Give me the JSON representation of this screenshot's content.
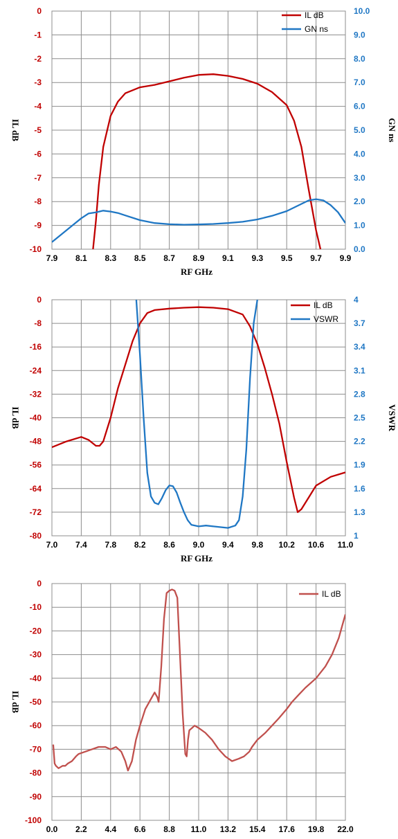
{
  "chart_data": [
    {
      "type": "line",
      "xlabel": "RF GHz",
      "ylabel": "IL dB",
      "y2label": "GN ns",
      "xlim": [
        7.9,
        9.9
      ],
      "ylim": [
        -10,
        0
      ],
      "y2lim": [
        0,
        10
      ],
      "xticks": [
        "7.9",
        "8.1",
        "8.3",
        "8.5",
        "8.7",
        "8.9",
        "9.1",
        "9.3",
        "9.5",
        "9.7",
        "9.9"
      ],
      "yticks": [
        "0",
        "-1",
        "-2",
        "-3",
        "-4",
        "-5",
        "-6",
        "-7",
        "-8",
        "-9",
        "-10"
      ],
      "y2ticks": [
        "10.0",
        "9.0",
        "8.0",
        "7.0",
        "6.0",
        "5.0",
        "4.0",
        "3.0",
        "2.0",
        "1.0",
        "0.0"
      ],
      "grid": true,
      "legend": "top-right",
      "series": [
        {
          "name": "IL dB",
          "axis": "left",
          "color": "#c00000",
          "x": [
            8.18,
            8.2,
            8.22,
            8.25,
            8.3,
            8.35,
            8.4,
            8.5,
            8.6,
            8.7,
            8.8,
            8.9,
            9.0,
            9.1,
            9.2,
            9.3,
            9.4,
            9.5,
            9.55,
            9.6,
            9.65,
            9.7,
            9.73
          ],
          "y": [
            -10,
            -8.8,
            -7.3,
            -5.7,
            -4.4,
            -3.8,
            -3.45,
            -3.2,
            -3.1,
            -2.95,
            -2.8,
            -2.68,
            -2.65,
            -2.72,
            -2.85,
            -3.05,
            -3.4,
            -3.95,
            -4.6,
            -5.7,
            -7.5,
            -9.2,
            -10
          ]
        },
        {
          "name": "GN ns",
          "axis": "right",
          "color": "#1f77c4",
          "x": [
            7.9,
            7.95,
            8.0,
            8.05,
            8.1,
            8.15,
            8.2,
            8.25,
            8.3,
            8.35,
            8.4,
            8.5,
            8.6,
            8.7,
            8.8,
            8.9,
            9.0,
            9.1,
            9.2,
            9.3,
            9.4,
            9.5,
            9.6,
            9.65,
            9.7,
            9.75,
            9.8,
            9.85,
            9.9
          ],
          "y": [
            0.3,
            0.55,
            0.8,
            1.05,
            1.3,
            1.5,
            1.55,
            1.62,
            1.58,
            1.52,
            1.42,
            1.22,
            1.1,
            1.05,
            1.03,
            1.04,
            1.06,
            1.1,
            1.15,
            1.25,
            1.4,
            1.6,
            1.9,
            2.05,
            2.1,
            2.05,
            1.85,
            1.55,
            1.1
          ]
        }
      ]
    },
    {
      "type": "line",
      "xlabel": "RF GHz",
      "ylabel": "IL dB",
      "y2label": "VSWR",
      "xlim": [
        7.0,
        11.0
      ],
      "ylim": [
        -80,
        0
      ],
      "y2lim": [
        1,
        4
      ],
      "xticks": [
        "7.0",
        "7.4",
        "7.8",
        "8.2",
        "8.6",
        "9.0",
        "9.4",
        "9.8",
        "10.2",
        "10.6",
        "11.0"
      ],
      "yticks": [
        "0",
        "-8",
        "-16",
        "-24",
        "-32",
        "-40",
        "-48",
        "-56",
        "-64",
        "-72",
        "-80"
      ],
      "y2ticks": [
        "4",
        "3.7",
        "3.4",
        "3.1",
        "2.8",
        "2.5",
        "2.2",
        "1.9",
        "1.6",
        "1.3",
        "1"
      ],
      "grid": true,
      "legend": "top-right",
      "series": [
        {
          "name": "IL dB",
          "axis": "left",
          "color": "#c00000",
          "x": [
            7.0,
            7.2,
            7.4,
            7.5,
            7.6,
            7.65,
            7.7,
            7.8,
            7.9,
            8.0,
            8.1,
            8.2,
            8.3,
            8.4,
            8.6,
            8.8,
            9.0,
            9.2,
            9.4,
            9.6,
            9.7,
            9.8,
            9.9,
            10.0,
            10.1,
            10.2,
            10.3,
            10.35,
            10.4,
            10.5,
            10.6,
            10.8,
            11.0
          ],
          "y": [
            -50,
            -48,
            -46.5,
            -47.5,
            -49.5,
            -49.5,
            -48,
            -40,
            -30,
            -22,
            -14,
            -8,
            -4.5,
            -3.5,
            -3,
            -2.7,
            -2.5,
            -2.7,
            -3.2,
            -5,
            -9,
            -15,
            -23,
            -32,
            -42,
            -55,
            -67,
            -72,
            -71,
            -67,
            -63,
            -60,
            -58.5
          ]
        },
        {
          "name": "VSWR",
          "axis": "right",
          "color": "#1f77c4",
          "x": [
            8.15,
            8.2,
            8.25,
            8.3,
            8.35,
            8.4,
            8.45,
            8.5,
            8.55,
            8.6,
            8.65,
            8.7,
            8.75,
            8.8,
            8.85,
            8.9,
            9.0,
            9.1,
            9.2,
            9.3,
            9.4,
            9.5,
            9.55,
            9.6,
            9.65,
            9.7,
            9.75,
            9.8
          ],
          "y": [
            4,
            3.3,
            2.5,
            1.8,
            1.5,
            1.42,
            1.4,
            1.48,
            1.58,
            1.64,
            1.63,
            1.55,
            1.42,
            1.3,
            1.2,
            1.14,
            1.12,
            1.13,
            1.12,
            1.11,
            1.1,
            1.13,
            1.2,
            1.5,
            2.1,
            3.0,
            3.7,
            4
          ]
        }
      ]
    },
    {
      "type": "line",
      "xlabel": "RF GHz",
      "ylabel": "IL dB",
      "xlim": [
        0.0,
        22.0
      ],
      "ylim": [
        -100,
        0
      ],
      "xticks": [
        "0.0",
        "2.2",
        "4.4",
        "6.6",
        "8.8",
        "11.0",
        "13.2",
        "15.4",
        "17.6",
        "19.8",
        "22.0"
      ],
      "yticks": [
        "0",
        "-10",
        "-20",
        "-30",
        "-40",
        "-50",
        "-60",
        "-70",
        "-80",
        "-90",
        "-100"
      ],
      "grid": true,
      "legend": "top-right",
      "series": [
        {
          "name": "IL dB",
          "axis": "left",
          "color": "#c0504d",
          "x": [
            0.1,
            0.2,
            0.3,
            0.5,
            0.8,
            1.0,
            1.2,
            1.5,
            1.8,
            2.0,
            2.5,
            3.0,
            3.5,
            4.0,
            4.4,
            4.8,
            5.2,
            5.5,
            5.7,
            6.0,
            6.3,
            6.6,
            7.0,
            7.3,
            7.5,
            7.7,
            7.9,
            8.0,
            8.2,
            8.4,
            8.6,
            8.8,
            9.0,
            9.2,
            9.4,
            9.6,
            9.8,
            10.0,
            10.1,
            10.2,
            10.3,
            10.5,
            10.7,
            11.0,
            11.5,
            12.0,
            12.5,
            13.0,
            13.5,
            14.0,
            14.4,
            14.8,
            15.0,
            15.4,
            16.0,
            16.5,
            17.0,
            17.6,
            18.0,
            18.5,
            19.0,
            19.8,
            20.5,
            21.0,
            21.5,
            22.0
          ],
          "y": [
            -68,
            -76,
            -77,
            -78,
            -77,
            -77,
            -76,
            -75,
            -73,
            -72,
            -71,
            -70,
            -69,
            -69,
            -70,
            -69,
            -71,
            -75,
            -79,
            -75,
            -66,
            -60,
            -53,
            -50,
            -48,
            -46,
            -48,
            -50,
            -35,
            -15,
            -4,
            -3,
            -2.5,
            -3,
            -6,
            -30,
            -55,
            -72,
            -73,
            -66,
            -62,
            -61,
            -60,
            -61,
            -63,
            -66,
            -70,
            -73,
            -75,
            -74,
            -73,
            -71,
            -69,
            -66,
            -63,
            -60,
            -57,
            -53,
            -50,
            -47,
            -44,
            -40,
            -35,
            -30,
            -23,
            -13
          ]
        }
      ]
    }
  ]
}
